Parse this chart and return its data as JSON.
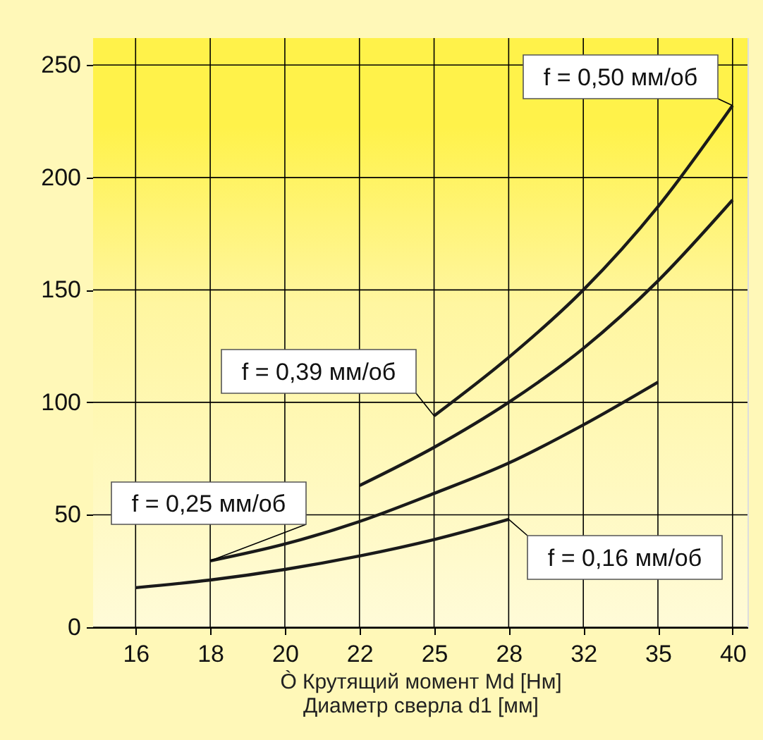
{
  "chart_data": {
    "type": "line",
    "xlabel": "Ò Крутящий момент Md [Нм]\nДиаметр сверла d1 [мм]",
    "categories": [
      "16",
      "18",
      "20",
      "22",
      "25",
      "28",
      "32",
      "35",
      "40"
    ],
    "series": [
      {
        "color": "#1a1a1a",
        "values": [
          null,
          null,
          null,
          null,
          94,
          120,
          150,
          187,
          232
        ]
      },
      {
        "color": "#1a1a1a",
        "values": [
          null,
          null,
          null,
          63,
          80,
          100,
          124,
          154,
          190
        ]
      },
      {
        "color": "#1a1a1a",
        "values": [
          null,
          29.5,
          37,
          47,
          59.5,
          73,
          90,
          109,
          null
        ]
      },
      {
        "color": "#1a1a1a",
        "values": [
          17.6,
          21,
          25.7,
          31.7,
          39,
          48,
          null,
          null,
          null
        ]
      }
    ],
    "annotations": [
      {
        "text": "f = 0,50 мм/об",
        "x": "40",
        "y": 232
      },
      {
        "text": "f = 0,39 мм/об",
        "x": "25",
        "y": 94
      },
      {
        "text": "f = 0,25 мм/об",
        "x": "18",
        "y": 29.5
      },
      {
        "text": "f = 0,16 мм/об",
        "x": "28",
        "y": 48
      }
    ],
    "ylim": [
      0,
      262
    ],
    "yticks": [
      0,
      50,
      100,
      150,
      200,
      250
    ],
    "grid": true,
    "marker": "none",
    "line_style": "solid"
  }
}
